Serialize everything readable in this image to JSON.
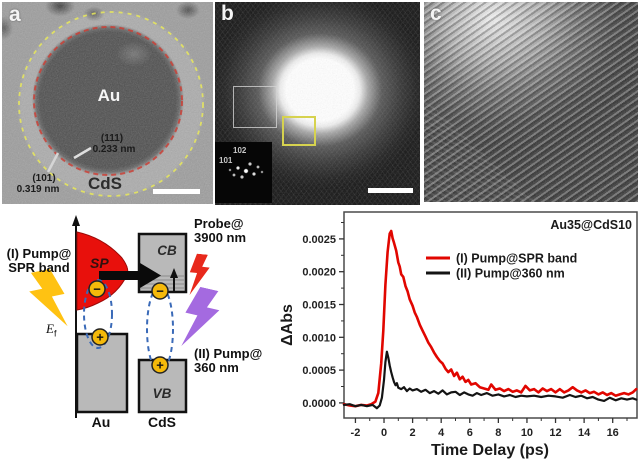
{
  "panel_a": {
    "label": "a",
    "core_label": "Au",
    "shell_label": "CdS",
    "plane1": "(111)",
    "spacing1": "0.233 nm",
    "plane2": "(101)",
    "spacing2": "0.319 nm",
    "core_outline_color": "#c8403a",
    "shell_outline_color": "#e6e65a"
  },
  "panel_b": {
    "label": "b",
    "fft_spot_top": "102",
    "fft_spot_left": "101"
  },
  "panel_c": {
    "label": "c"
  },
  "diagram": {
    "pump1_line1": "(I) Pump@",
    "pump1_line2": "SPR band",
    "probe_line1": "Probe@",
    "probe_line2": "3900 nm",
    "pump2_line1": "(II) Pump@",
    "pump2_line2": "360 nm",
    "sp_label": "SP",
    "cb_label": "CB",
    "vb_label": "VB",
    "au_label": "Au",
    "cds_label": "CdS",
    "ef_main": "E",
    "ef_sub": "f",
    "electron_sign": "−",
    "hole_sign": "+",
    "colors": {
      "sp_band": "#e8100c",
      "pump1_bolt": "#ffc212",
      "pump2_bolt": "#a46ae0",
      "probe_bolt": "#e8291c",
      "carrier_fill": "#f5b90a",
      "exciton_dash": "#3a6ab8",
      "box_fill": "#b9b9b9",
      "box_stroke": "#111111"
    }
  },
  "chart_data": {
    "type": "line",
    "title": "Au35@CdS10",
    "xlabel": "Time Delay (ps)",
    "ylabel": "ΔAbs",
    "xlim": [
      -2.8,
      17.7
    ],
    "ylim": [
      -0.00023,
      0.00291
    ],
    "x_ticks": [
      -2,
      0,
      2,
      4,
      6,
      8,
      10,
      12,
      14,
      16
    ],
    "y_ticks": [
      0.0,
      0.0005,
      0.001,
      0.0015,
      0.002,
      0.0025
    ],
    "y_tick_decimals": 4,
    "grid": false,
    "legend_position": "inside upper right-of-peak",
    "series": [
      {
        "name": "(I) Pump@SPR band",
        "color": "#e10600",
        "width": 2.6,
        "points": [
          [
            -2.8,
            -2e-05
          ],
          [
            -2.4,
            -4e-05
          ],
          [
            -2,
            -5e-05
          ],
          [
            -1.6,
            -3e-05
          ],
          [
            -1.2,
            -4e-05
          ],
          [
            -0.9,
            -2e-05
          ],
          [
            -0.6,
            2e-05
          ],
          [
            -0.4,
            0.00015
          ],
          [
            -0.2,
            0.0006
          ],
          [
            -0.05,
            0.0011
          ],
          [
            0.1,
            0.0018
          ],
          [
            0.25,
            0.0023
          ],
          [
            0.4,
            0.00258
          ],
          [
            0.5,
            0.00262
          ],
          [
            0.6,
            0.00251
          ],
          [
            0.7,
            0.00244
          ],
          [
            0.85,
            0.00232
          ],
          [
            1,
            0.00214
          ],
          [
            1.1,
            0.00208
          ],
          [
            1.2,
            0.00196
          ],
          [
            1.35,
            0.00192
          ],
          [
            1.5,
            0.00178
          ],
          [
            1.65,
            0.0017
          ],
          [
            1.8,
            0.00158
          ],
          [
            2,
            0.00148
          ],
          [
            2.15,
            0.00138
          ],
          [
            2.3,
            0.00131
          ],
          [
            2.5,
            0.00119
          ],
          [
            2.7,
            0.0011
          ],
          [
            2.9,
            0.00101
          ],
          [
            3.1,
            0.00092
          ],
          [
            3.3,
            0.00085
          ],
          [
            3.5,
            0.00077
          ],
          [
            3.7,
            0.0007
          ],
          [
            3.9,
            0.00064
          ],
          [
            4.1,
            0.0006
          ],
          [
            4.3,
            0.00052
          ],
          [
            4.5,
            0.00047
          ],
          [
            4.7,
            0.00051
          ],
          [
            4.9,
            0.00041
          ],
          [
            5.1,
            0.00046
          ],
          [
            5.3,
            0.00036
          ],
          [
            5.5,
            0.0004
          ],
          [
            5.7,
            0.00032
          ],
          [
            5.9,
            0.00035
          ],
          [
            6.1,
            0.00028
          ],
          [
            6.4,
            0.0003
          ],
          [
            6.7,
            0.00024
          ],
          [
            7,
            0.00022
          ],
          [
            7.3,
            0.0002
          ],
          [
            7.5,
            0.00028
          ],
          [
            7.8,
            0.0002
          ],
          [
            8.1,
            0.00022
          ],
          [
            8.4,
            0.00018
          ],
          [
            8.7,
            0.00021
          ],
          [
            9,
            0.00017
          ],
          [
            9.3,
            0.00019
          ],
          [
            9.6,
            0.00016
          ],
          [
            9.9,
            0.00026
          ],
          [
            10.2,
            0.00019
          ],
          [
            10.5,
            0.00021
          ],
          [
            10.8,
            0.00016
          ],
          [
            11.1,
            0.00022
          ],
          [
            11.4,
            0.00018
          ],
          [
            11.7,
            0.00021
          ],
          [
            12,
            0.00016
          ],
          [
            12.3,
            0.00021
          ],
          [
            12.6,
            0.00016
          ],
          [
            12.9,
            0.00019
          ],
          [
            13.2,
            0.00024
          ],
          [
            13.5,
            0.00019
          ],
          [
            13.8,
            0.00016
          ],
          [
            14.1,
            0.00019
          ],
          [
            14.4,
            0.00015
          ],
          [
            14.7,
            0.00017
          ],
          [
            15,
            0.00013
          ],
          [
            15.3,
            0.00016
          ],
          [
            15.6,
            0.00012
          ],
          [
            15.9,
            0.00015
          ],
          [
            16.2,
            0.00011
          ],
          [
            16.5,
            0.00013
          ],
          [
            16.8,
            0.00015
          ],
          [
            17.1,
            0.00013
          ],
          [
            17.4,
            0.00016
          ],
          [
            17.65,
            0.00021
          ]
        ]
      },
      {
        "name": "(II) Pump@360 nm",
        "color": "#141414",
        "width": 2.2,
        "points": [
          [
            -2.8,
            -3e-05
          ],
          [
            -2.4,
            -2e-05
          ],
          [
            -2,
            -5e-05
          ],
          [
            -1.6,
            -3e-05
          ],
          [
            -1.2,
            -5e-05
          ],
          [
            -0.8,
            -3e-05
          ],
          [
            -0.5,
            -8e-05
          ],
          [
            -0.3,
            -4e-05
          ],
          [
            -0.15,
            8e-05
          ],
          [
            0,
            0.00035
          ],
          [
            0.1,
            0.00062
          ],
          [
            0.2,
            0.00078
          ],
          [
            0.3,
            0.00069
          ],
          [
            0.4,
            0.00057
          ],
          [
            0.5,
            0.00047
          ],
          [
            0.6,
            0.00039
          ],
          [
            0.7,
            0.00032
          ],
          [
            0.8,
            0.00027
          ],
          [
            0.9,
            0.0003
          ],
          [
            1,
            0.00023
          ],
          [
            1.2,
            0.00021
          ],
          [
            1.4,
            0.00024
          ],
          [
            1.6,
            0.00018
          ],
          [
            1.8,
            0.00022
          ],
          [
            2,
            0.00019
          ],
          [
            2.3,
            0.00021
          ],
          [
            2.6,
            0.00017
          ],
          [
            2.9,
            0.0002
          ],
          [
            3.2,
            0.00015
          ],
          [
            3.5,
            0.00018
          ],
          [
            3.8,
            0.00014
          ],
          [
            4.1,
            0.00019
          ],
          [
            4.4,
            0.00013
          ],
          [
            4.7,
            0.00016
          ],
          [
            5,
            0.00017
          ],
          [
            5.3,
            0.00012
          ],
          [
            5.6,
            0.00016
          ],
          [
            5.9,
            0.00013
          ],
          [
            6.2,
            0.00011
          ],
          [
            6.5,
            0.00015
          ],
          [
            6.8,
            0.00012
          ],
          [
            7.2,
            0.00015
          ],
          [
            7.6,
            0.00011
          ],
          [
            8,
            0.00013
          ],
          [
            8.4,
            0.0001
          ],
          [
            8.8,
            0.00012
          ],
          [
            9.2,
            9e-05
          ],
          [
            9.6,
            0.00011
          ],
          [
            10,
            0.0001
          ],
          [
            10.5,
            0.00011
          ],
          [
            11,
            9e-05
          ],
          [
            11.5,
            0.00011
          ],
          [
            12,
            0.0001
          ],
          [
            12.5,
            8e-05
          ],
          [
            13,
            0.00012
          ],
          [
            13.4,
            9e-05
          ],
          [
            13.8,
            0.00011
          ],
          [
            14.2,
            7e-05
          ],
          [
            14.6,
            9e-05
          ],
          [
            15,
            5e-05
          ],
          [
            15.4,
            3e-05
          ],
          [
            15.8,
            8e-05
          ],
          [
            16.2,
            4e-05
          ],
          [
            16.6,
            7e-05
          ],
          [
            17,
            5e-05
          ],
          [
            17.4,
            7e-05
          ],
          [
            17.65,
            5e-05
          ]
        ]
      }
    ]
  }
}
